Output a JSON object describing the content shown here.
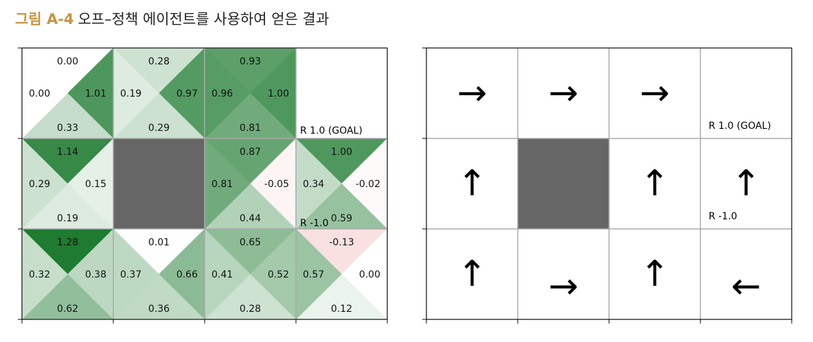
{
  "caption": {
    "fig_label": "그림 A-4",
    "title": "오프–정책 에이전트를 사용하여 얻은 결과"
  },
  "grid": {
    "rows": 3,
    "cols": 4,
    "wall": [
      1,
      1
    ]
  },
  "colors": {
    "positive": "#1e7b30",
    "negative": "#e06060",
    "wall": "#666666",
    "line": "#aaaaaa"
  },
  "q_values": [
    [
      {
        "up": "0.00",
        "left": "0.00",
        "right": "1.01",
        "down": "0.33"
      },
      {
        "up": "0.28",
        "left": "0.19",
        "right": "0.97",
        "down": "0.29"
      },
      {
        "up": "0.93",
        "left": "0.96",
        "right": "1.00",
        "down": "0.81"
      },
      null
    ],
    [
      {
        "up": "1.14",
        "left": "0.29",
        "right": "0.15",
        "down": "0.19"
      },
      null,
      {
        "up": "0.87",
        "left": "0.81",
        "right": "-0.05",
        "down": "0.44"
      },
      {
        "up": "1.00",
        "left": "0.34",
        "right": "-0.02",
        "down": "0.59"
      }
    ],
    [
      {
        "up": "1.28",
        "left": "0.32",
        "right": "0.38",
        "down": "0.62"
      },
      {
        "up": "0.01",
        "left": "0.37",
        "right": "0.66",
        "down": "0.36"
      },
      {
        "up": "0.65",
        "left": "0.41",
        "right": "0.52",
        "down": "0.28"
      },
      {
        "up": "-0.13",
        "left": "0.57",
        "right": "0.00",
        "down": "0.12"
      }
    ]
  ],
  "rewards": {
    "goal": "R 1.0 (GOAL)",
    "penalty": "R -1.0"
  },
  "policy": [
    [
      "right",
      "right",
      "right",
      null
    ],
    [
      "up",
      null,
      "up",
      "up"
    ],
    [
      "up",
      "right",
      "up",
      "left"
    ]
  ],
  "arrow_glyphs": {
    "right": "→",
    "left": "←",
    "up": "↑",
    "down": "↓"
  }
}
